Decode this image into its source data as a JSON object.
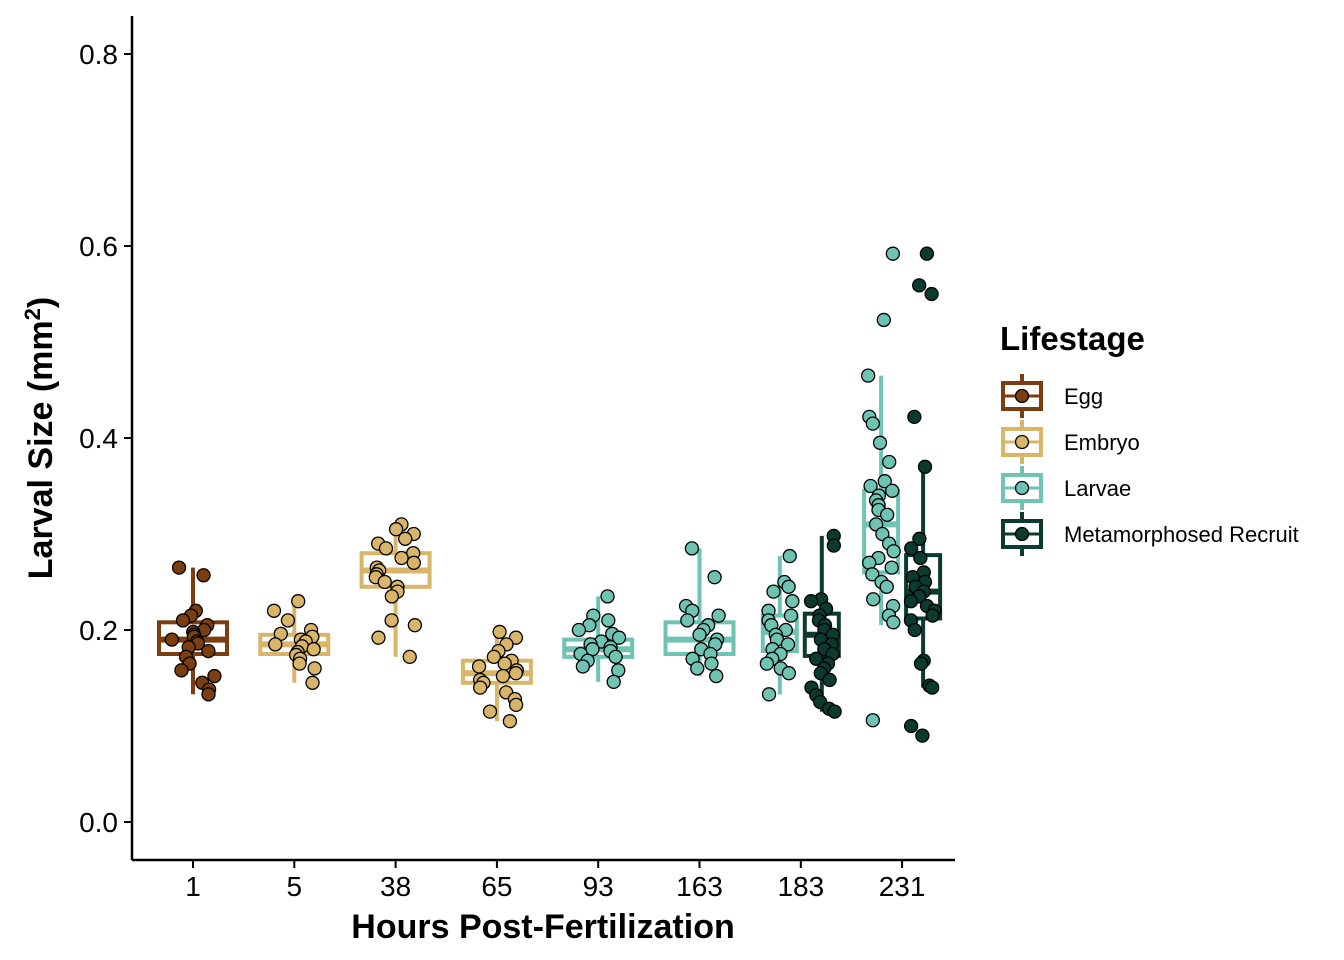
{
  "chart_data": {
    "type": "box",
    "xlabel": "Hours Post-Fertilization",
    "ylabel": "Larval Size (mm",
    "ylabel_superscript": "2",
    "ylabel_close": ")",
    "ylim": [
      0.0,
      0.82
    ],
    "y_ticks": [
      "0.0",
      "0.2",
      "0.4",
      "0.6",
      "0.8"
    ],
    "categories": [
      "1",
      "5",
      "38",
      "65",
      "93",
      "163",
      "183",
      "231"
    ],
    "legend": {
      "title": "Lifestage",
      "placement": "right",
      "items": [
        {
          "name": "Egg",
          "color": "#7a3e10"
        },
        {
          "name": "Embryo",
          "color": "#d9b56a"
        },
        {
          "name": "Larvae",
          "color": "#6ec3b3"
        },
        {
          "name": "Metamorphosed Recruit",
          "color": "#0b3a2e"
        }
      ]
    },
    "grid": false,
    "boxes": [
      {
        "category": "1",
        "lifestage": "Egg",
        "position": "center",
        "q1": 0.175,
        "median": 0.19,
        "q3": 0.208,
        "whisker_low": 0.133,
        "whisker_high": 0.265,
        "points": [
          0.265,
          0.257,
          0.22,
          0.215,
          0.21,
          0.205,
          0.2,
          0.198,
          0.195,
          0.193,
          0.19,
          0.188,
          0.186,
          0.182,
          0.178,
          0.172,
          0.165,
          0.158,
          0.152,
          0.145,
          0.138,
          0.133
        ]
      },
      {
        "category": "5",
        "lifestage": "Embryo",
        "position": "center",
        "q1": 0.175,
        "median": 0.185,
        "q3": 0.195,
        "whisker_low": 0.145,
        "whisker_high": 0.23,
        "points": [
          0.23,
          0.22,
          0.21,
          0.2,
          0.196,
          0.193,
          0.19,
          0.188,
          0.185,
          0.183,
          0.18,
          0.177,
          0.174,
          0.17,
          0.165,
          0.16,
          0.145
        ]
      },
      {
        "category": "38",
        "lifestage": "Embryo",
        "position": "center",
        "q1": 0.245,
        "median": 0.262,
        "q3": 0.28,
        "whisker_low": 0.172,
        "whisker_high": 0.31,
        "points": [
          0.31,
          0.305,
          0.3,
          0.295,
          0.29,
          0.285,
          0.28,
          0.275,
          0.27,
          0.265,
          0.262,
          0.258,
          0.255,
          0.25,
          0.245,
          0.24,
          0.235,
          0.21,
          0.205,
          0.192,
          0.172
        ]
      },
      {
        "category": "65",
        "lifestage": "Embryo",
        "position": "center",
        "q1": 0.145,
        "median": 0.155,
        "q3": 0.168,
        "whisker_low": 0.105,
        "whisker_high": 0.198,
        "points": [
          0.198,
          0.192,
          0.185,
          0.178,
          0.172,
          0.168,
          0.165,
          0.162,
          0.158,
          0.155,
          0.152,
          0.148,
          0.145,
          0.14,
          0.135,
          0.128,
          0.122,
          0.115,
          0.105
        ]
      },
      {
        "category": "93",
        "lifestage": "Larvae",
        "position": "center",
        "q1": 0.172,
        "median": 0.18,
        "q3": 0.19,
        "whisker_low": 0.146,
        "whisker_high": 0.235,
        "points": [
          0.235,
          0.215,
          0.21,
          0.205,
          0.2,
          0.196,
          0.192,
          0.188,
          0.185,
          0.182,
          0.18,
          0.178,
          0.175,
          0.172,
          0.168,
          0.162,
          0.158,
          0.146
        ]
      },
      {
        "category": "163",
        "lifestage": "Larvae",
        "position": "center",
        "q1": 0.175,
        "median": 0.19,
        "q3": 0.208,
        "whisker_low": 0.152,
        "whisker_high": 0.285,
        "points": [
          0.285,
          0.255,
          0.225,
          0.22,
          0.215,
          0.21,
          0.205,
          0.2,
          0.195,
          0.19,
          0.185,
          0.18,
          0.175,
          0.17,
          0.165,
          0.16,
          0.152
        ]
      },
      {
        "category": "183",
        "lifestage": "Larvae",
        "position": "left",
        "q1": 0.178,
        "median": 0.198,
        "q3": 0.215,
        "whisker_low": 0.133,
        "whisker_high": 0.277,
        "points": [
          0.277,
          0.25,
          0.245,
          0.24,
          0.23,
          0.22,
          0.215,
          0.21,
          0.205,
          0.2,
          0.195,
          0.19,
          0.185,
          0.18,
          0.175,
          0.17,
          0.165,
          0.16,
          0.155,
          0.133
        ]
      },
      {
        "category": "183",
        "lifestage": "Metamorphosed Recruit",
        "position": "right",
        "q1": 0.173,
        "median": 0.195,
        "q3": 0.217,
        "whisker_low": 0.115,
        "whisker_high": 0.298,
        "points": [
          0.298,
          0.288,
          0.232,
          0.23,
          0.222,
          0.215,
          0.21,
          0.205,
          0.2,
          0.195,
          0.19,
          0.185,
          0.18,
          0.175,
          0.17,
          0.165,
          0.16,
          0.155,
          0.148,
          0.14,
          0.132,
          0.125,
          0.118,
          0.115
        ]
      },
      {
        "category": "231",
        "lifestage": "Larvae",
        "position": "left",
        "q1": 0.26,
        "median": 0.31,
        "q3": 0.345,
        "whisker_low": 0.205,
        "whisker_high": 0.465,
        "points": [
          0.592,
          0.523,
          0.465,
          0.422,
          0.415,
          0.395,
          0.375,
          0.355,
          0.35,
          0.345,
          0.34,
          0.335,
          0.33,
          0.325,
          0.32,
          0.31,
          0.3,
          0.29,
          0.282,
          0.275,
          0.27,
          0.265,
          0.258,
          0.25,
          0.245,
          0.232,
          0.225,
          0.215,
          0.208,
          0.106
        ]
      },
      {
        "category": "231",
        "lifestage": "Metamorphosed Recruit",
        "position": "right",
        "q1": 0.212,
        "median": 0.24,
        "q3": 0.278,
        "whisker_low": 0.14,
        "whisker_high": 0.37,
        "points": [
          0.592,
          0.559,
          0.55,
          0.422,
          0.37,
          0.295,
          0.285,
          0.275,
          0.26,
          0.255,
          0.25,
          0.245,
          0.24,
          0.235,
          0.23,
          0.225,
          0.22,
          0.215,
          0.21,
          0.2,
          0.168,
          0.165,
          0.142,
          0.14,
          0.1,
          0.09
        ]
      }
    ]
  }
}
